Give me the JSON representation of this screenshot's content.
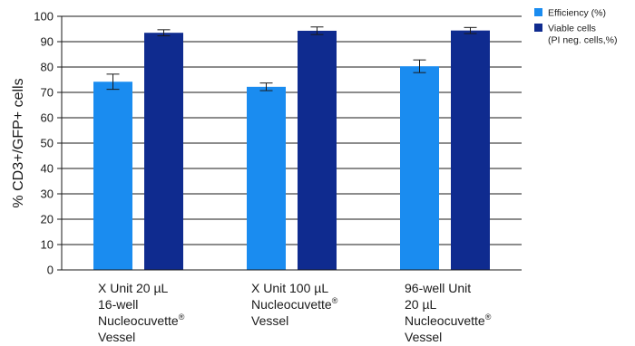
{
  "chart_data": {
    "type": "bar",
    "ylabel": "% CD3+/GFP+ cells",
    "xlabel": "",
    "ylim": [
      0,
      100
    ],
    "yticks": [
      0,
      10,
      20,
      30,
      40,
      50,
      60,
      70,
      80,
      90,
      100
    ],
    "grid": true,
    "legend_position": "top-right",
    "categories": [
      {
        "lines": [
          "X Unit 20 µL",
          "16-well",
          "Nucleocuvette",
          "Vessel"
        ],
        "sup_line": 2,
        "sup": "®"
      },
      {
        "lines": [
          "X Unit 100 µL",
          "Nucleocuvette",
          "Vessel"
        ],
        "sup_line": 1,
        "sup": "®"
      },
      {
        "lines": [
          "96-well Unit",
          "20 µL",
          "Nucleocuvette",
          "Vessel"
        ],
        "sup_line": 2,
        "sup": "®"
      }
    ],
    "series": [
      {
        "name": "Efficiency (%)",
        "color": "#1a8cf0",
        "values": [
          74.2,
          72.2,
          80.3
        ],
        "errors": [
          3.0,
          1.5,
          2.5
        ]
      },
      {
        "name": "Viable cells (PI neg. cells,%)",
        "legend_lines": [
          "Viable cells",
          "(PI neg. cells,%)"
        ],
        "color": "#0f2b8f",
        "values": [
          93.5,
          94.3,
          94.4
        ],
        "errors": [
          1.2,
          1.5,
          1.2
        ]
      }
    ]
  }
}
